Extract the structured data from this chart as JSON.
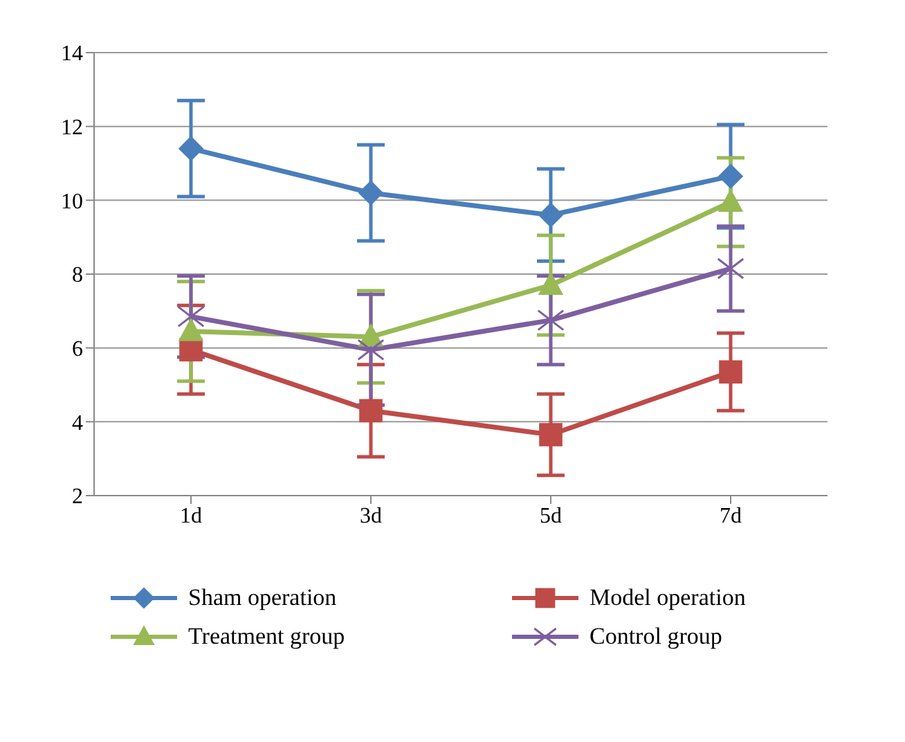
{
  "chart_data": {
    "type": "line",
    "categories": [
      "1d",
      "3d",
      "5d",
      "7d"
    ],
    "series": [
      {
        "name": "Sham operation",
        "color": "#4a7ebb",
        "marker": "diamond",
        "values": [
          11.4,
          10.2,
          9.6,
          10.65
        ],
        "errors": [
          1.3,
          1.3,
          1.25,
          1.4
        ]
      },
      {
        "name": "Model operation",
        "color": "#be4b48",
        "marker": "square",
        "values": [
          5.95,
          4.3,
          3.65,
          5.35
        ],
        "errors": [
          1.2,
          1.25,
          1.1,
          1.05
        ]
      },
      {
        "name": "Treatment group",
        "color": "#98b954",
        "marker": "triangle",
        "values": [
          6.45,
          6.3,
          7.7,
          9.95
        ],
        "errors": [
          1.35,
          1.25,
          1.35,
          1.2
        ]
      },
      {
        "name": "Control group",
        "color": "#7d5fa0",
        "marker": "cross",
        "values": [
          6.85,
          5.95,
          6.75,
          8.15
        ],
        "errors": [
          1.1,
          1.5,
          1.2,
          1.15
        ]
      }
    ],
    "ylim": [
      2,
      14
    ],
    "yticks": [
      2,
      4,
      6,
      8,
      10,
      12,
      14
    ],
    "grid": "y",
    "legend": "bottom",
    "line_style": "solid"
  }
}
